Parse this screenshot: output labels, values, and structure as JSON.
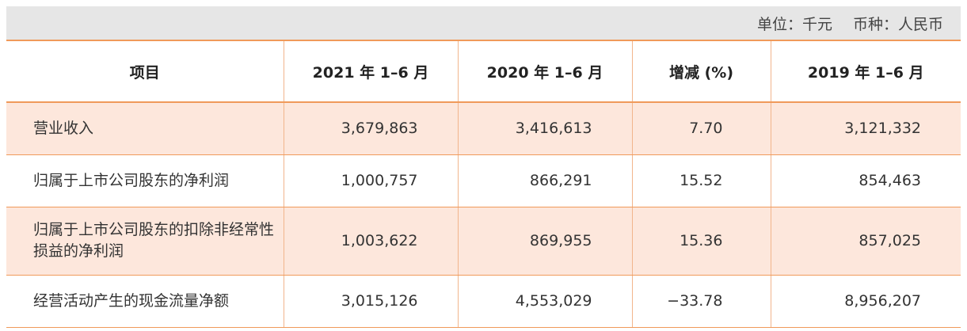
{
  "unit": {
    "unit_label": "单位：千元",
    "currency_label": "币种：人民币"
  },
  "table": {
    "headers": [
      "项目",
      "2021 年 1–6 月",
      "2020 年 1–6 月",
      "增减 (%)",
      "2019 年 1–6 月"
    ],
    "rows": [
      {
        "label": "营业收入",
        "v2021": "3,679,863",
        "v2020": "3,416,613",
        "change": "7.70",
        "v2019": "3,121,332"
      },
      {
        "label": "归属于上市公司股东的净利润",
        "v2021": "1,000,757",
        "v2020": "866,291",
        "change": "15.52",
        "v2019": "854,463"
      },
      {
        "label": "归属于上市公司股东的扣除非经常性损益的净利润",
        "v2021": "1,003,622",
        "v2020": "869,955",
        "change": "15.36",
        "v2019": "857,025"
      },
      {
        "label": "经营活动产生的现金流量净额",
        "v2021": "3,015,126",
        "v2020": "4,553,029",
        "change": "−33.78",
        "v2019": "8,956,207"
      }
    ]
  },
  "colors": {
    "header_border": "#f09a5a",
    "row_shade": "#fde7dc",
    "unit_bar": "#e6e6e6"
  }
}
